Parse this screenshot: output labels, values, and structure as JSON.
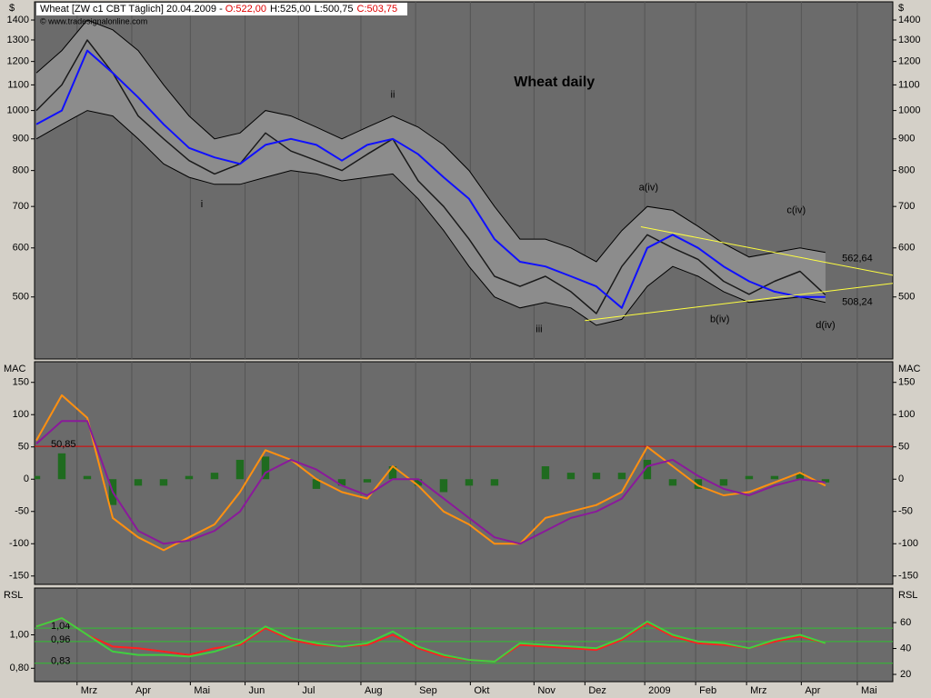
{
  "chart_data": [
    {
      "type": "line",
      "log": true,
      "title": "Wheat [ZW c1 CBT  Täglich] 20.04.2009 -",
      "quote": [
        {
          "text": "O:522,00",
          "color": "#e00000"
        },
        {
          "text": "H:525,00",
          "color": "#000000"
        },
        {
          "text": "L:500,75",
          "color": "#000000"
        },
        {
          "text": "C:503,75",
          "color": "#e00000"
        }
      ],
      "source": "© www.tradesignalonline.com",
      "unit": "$",
      "xlim": [
        -0.14,
        67.29
      ],
      "ylim": [
        397,
        1498
      ],
      "yticks": [
        500,
        600,
        700,
        800,
        900,
        1000,
        1100,
        1200,
        1300,
        1400
      ],
      "x": [
        0,
        2,
        4,
        6,
        8,
        10,
        12,
        14,
        16,
        18,
        20,
        22,
        24,
        26,
        28,
        30,
        32,
        34,
        36,
        38,
        40,
        42,
        44,
        46,
        48,
        50,
        52,
        54,
        56,
        58,
        60,
        62
      ],
      "band": {
        "fill": "#8c8c8c",
        "stroke": "#000000",
        "upper": [
          1150,
          1250,
          1400,
          1350,
          1250,
          1100,
          980,
          900,
          920,
          1000,
          980,
          940,
          900,
          940,
          980,
          940,
          880,
          800,
          700,
          620,
          620,
          600,
          570,
          640,
          700,
          690,
          650,
          610,
          580,
          590,
          600,
          590
        ],
        "lower": [
          900,
          950,
          1000,
          980,
          900,
          820,
          780,
          760,
          760,
          780,
          800,
          790,
          770,
          780,
          790,
          720,
          640,
          560,
          500,
          480,
          490,
          480,
          450,
          460,
          520,
          560,
          540,
          510,
          490,
          495,
          500,
          490
        ]
      },
      "series": [
        {
          "kind": "line",
          "color": "#1a1a1a",
          "width": 1.5,
          "values": [
            1000,
            1100,
            1300,
            1150,
            980,
            900,
            830,
            790,
            820,
            920,
            860,
            830,
            800,
            850,
            900,
            770,
            700,
            620,
            540,
            520,
            540,
            510,
            470,
            560,
            630,
            600,
            575,
            530,
            505,
            530,
            550,
            504
          ]
        },
        {
          "kind": "line",
          "color": "#1010ff",
          "width": 2,
          "values": [
            950,
            1000,
            1250,
            1150,
            1050,
            950,
            870,
            840,
            820,
            880,
            900,
            880,
            830,
            880,
            900,
            850,
            780,
            720,
            620,
            570,
            560,
            540,
            520,
            480,
            600,
            630,
            600,
            560,
            530,
            510,
            500,
            500
          ]
        }
      ],
      "trendlines": [
        {
          "color": "#ffff40",
          "x": [
            47.5,
            67.3
          ],
          "values": [
            649,
            542
          ]
        },
        {
          "color": "#ffff40",
          "x": [
            43.1,
            67.3
          ],
          "values": [
            458,
            526
          ]
        }
      ],
      "annotations": [
        {
          "text": "Wheat daily",
          "x": 40.7,
          "y": 1110,
          "size": 16
        },
        {
          "text": "i",
          "x": 13,
          "y": 705,
          "size": 11
        },
        {
          "text": "ii",
          "x": 28,
          "y": 1060,
          "size": 11
        },
        {
          "text": "iii",
          "x": 39.5,
          "y": 443,
          "size": 11
        },
        {
          "text": "a(iv)",
          "x": 48.1,
          "y": 750,
          "size": 11
        },
        {
          "text": "b(iv)",
          "x": 53.7,
          "y": 460,
          "size": 11
        },
        {
          "text": "c(iv)",
          "x": 59.7,
          "y": 690,
          "size": 11
        },
        {
          "text": "d(iv)",
          "x": 62,
          "y": 450,
          "size": 11
        },
        {
          "text": "562,64",
          "x": 64.5,
          "y": 577,
          "size": 11
        },
        {
          "text": "508,24",
          "x": 64.5,
          "y": 490,
          "size": 11
        }
      ]
    },
    {
      "type": "line",
      "ylabel": "MAC",
      "xlim": [
        -0.14,
        67.29
      ],
      "ylim": [
        -163,
        182
      ],
      "yticks": [
        -150,
        -100,
        -50,
        0,
        50,
        100,
        150
      ],
      "x": [
        0,
        2,
        4,
        6,
        8,
        10,
        12,
        14,
        16,
        18,
        20,
        22,
        24,
        26,
        28,
        30,
        32,
        34,
        36,
        38,
        40,
        42,
        44,
        46,
        48,
        50,
        52,
        54,
        56,
        58,
        60,
        62
      ],
      "refs": [
        {
          "value": 50.85,
          "label": "50,85",
          "color": "#e00000"
        }
      ],
      "series": [
        {
          "kind": "bar",
          "color": "#1f6b1f",
          "values": [
            5,
            40,
            5,
            -40,
            -10,
            -10,
            5,
            10,
            30,
            35,
            0,
            -15,
            -10,
            -5,
            20,
            -10,
            -20,
            -10,
            -10,
            0,
            20,
            10,
            10,
            10,
            30,
            -10,
            -15,
            -10,
            5,
            5,
            10,
            -5
          ]
        },
        {
          "kind": "line",
          "color": "#ff9010",
          "width": 2,
          "values": [
            60,
            130,
            95,
            -60,
            -90,
            -110,
            -90,
            -70,
            -20,
            45,
            30,
            0,
            -20,
            -30,
            20,
            -10,
            -50,
            -70,
            -100,
            -100,
            -60,
            -50,
            -40,
            -20,
            50,
            20,
            -10,
            -25,
            -20,
            -5,
            10,
            -10
          ]
        },
        {
          "kind": "line",
          "color": "#8a1a9a",
          "width": 2,
          "values": [
            55,
            90,
            90,
            -20,
            -80,
            -100,
            -95,
            -80,
            -50,
            10,
            30,
            15,
            -10,
            -25,
            0,
            0,
            -30,
            -60,
            -90,
            -100,
            -80,
            -60,
            -50,
            -30,
            20,
            30,
            5,
            -15,
            -25,
            -10,
            0,
            -5
          ]
        }
      ]
    },
    {
      "type": "line",
      "ylabel": "RSL",
      "xlim": [
        -0.14,
        67.29
      ],
      "ylim": [
        0.72,
        1.28
      ],
      "yticks": [
        {
          "value": 0.8,
          "label": "0,80"
        },
        {
          "value": 1.0,
          "label": "1,00"
        }
      ],
      "y2lim": [
        14.4,
        86.7
      ],
      "y2ticks": [
        20,
        40,
        60
      ],
      "xticks": [
        {
          "value": 3.2,
          "label": "Mrz"
        },
        {
          "value": 7.5,
          "label": "Apr"
        },
        {
          "value": 12.1,
          "label": "Mai"
        },
        {
          "value": 16.4,
          "label": "Jun"
        },
        {
          "value": 20.6,
          "label": "Jul"
        },
        {
          "value": 25.5,
          "label": "Aug"
        },
        {
          "value": 29.8,
          "label": "Sep"
        },
        {
          "value": 34.1,
          "label": "Okt"
        },
        {
          "value": 39.1,
          "label": "Nov"
        },
        {
          "value": 43.1,
          "label": "Dez"
        },
        {
          "value": 47.8,
          "label": "2009"
        },
        {
          "value": 51.8,
          "label": "Feb"
        },
        {
          "value": 55.8,
          "label": "Mrz"
        },
        {
          "value": 60.1,
          "label": "Apr"
        },
        {
          "value": 64.5,
          "label": "Mai"
        }
      ],
      "x": [
        0,
        2,
        4,
        6,
        8,
        10,
        12,
        14,
        16,
        18,
        20,
        22,
        24,
        26,
        28,
        30,
        32,
        34,
        36,
        38,
        40,
        42,
        44,
        46,
        48,
        50,
        52,
        54,
        56,
        58,
        60,
        62
      ],
      "refs": [
        {
          "value": 1.04,
          "label": "1,04",
          "color": "#30c030"
        },
        {
          "value": 0.96,
          "label": "0,96",
          "color": "#30c030"
        },
        {
          "value": 0.83,
          "label": "0,83",
          "color": "#30c030"
        }
      ],
      "series": [
        {
          "kind": "line",
          "color": "#ff2020",
          "width": 2,
          "values": [
            1.05,
            1.1,
            1.0,
            0.93,
            0.92,
            0.9,
            0.88,
            0.92,
            0.94,
            1.04,
            0.97,
            0.94,
            0.93,
            0.94,
            1.0,
            0.92,
            0.87,
            0.85,
            0.84,
            0.94,
            0.93,
            0.92,
            0.91,
            0.97,
            1.07,
            0.99,
            0.95,
            0.94,
            0.92,
            0.96,
            0.99,
            0.95
          ]
        },
        {
          "kind": "line",
          "color": "#40d040",
          "width": 2,
          "values": [
            1.05,
            1.1,
            1.0,
            0.9,
            0.88,
            0.88,
            0.87,
            0.9,
            0.95,
            1.05,
            0.98,
            0.95,
            0.93,
            0.95,
            1.02,
            0.93,
            0.88,
            0.85,
            0.84,
            0.95,
            0.94,
            0.93,
            0.92,
            0.98,
            1.08,
            1.0,
            0.96,
            0.95,
            0.92,
            0.97,
            1.0,
            0.95
          ]
        }
      ]
    }
  ]
}
